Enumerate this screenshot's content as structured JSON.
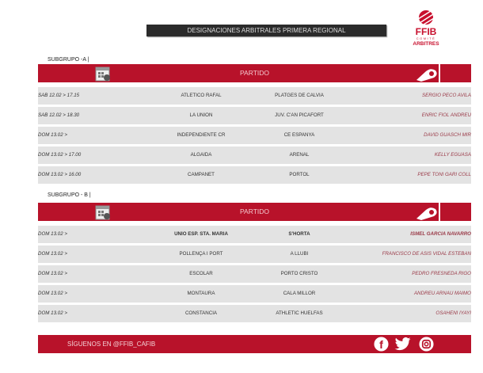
{
  "title": "DESIGNACIONES ARBITRALES PRIMERA REGIONAL",
  "logo": {
    "text": "FFIB",
    "sub1": "COMITÈ",
    "sub2": "ARBITRES"
  },
  "colors": {
    "accent": "#b8122a",
    "title_bg": "#2b2b2b",
    "row_bg": "#e3e3e3",
    "referee": "#9a3a48"
  },
  "groups": [
    {
      "label": "SUBGRUPO -A |",
      "header": "PARTIDO",
      "rows": [
        {
          "date": "SAB 12.02 > 17.15",
          "home": "ATLETICO RAFAL",
          "away": "PLATGES DE CALVIA",
          "referee": "SERGIO PECO AVILA"
        },
        {
          "date": "SAB 12.02 > 18.30",
          "home": "LA UNION",
          "away": "JUV. C'AN PICAFORT",
          "referee": "ENRIC FIOL ANDREU"
        },
        {
          "date": "DOM  13.02 >",
          "home": "INDEPENDIENTE CR",
          "away": "CE ESPANYA",
          "referee": "DAVID GUASCH MIR"
        },
        {
          "date": "DOM  13.02 > 17.00",
          "home": "ALGAIDA",
          "away": "ARENAL",
          "referee": "KELLY EGUASA"
        },
        {
          "date": "DOM  13.02 > 16.00",
          "home": "CAMPANET",
          "away": "PORTOL",
          "referee": "PEPE TONI GARI COLL"
        }
      ]
    },
    {
      "label": "SUBGRUPO - B |",
      "header": "PARTIDO",
      "rows": [
        {
          "date": "DOM  13.02 >",
          "home": "UNIO ESP. STA. MARIA",
          "away": "S'HORTA",
          "referee": "ISMEL GARCIA NAVARRO",
          "bold": true
        },
        {
          "date": "DOM  13.02 >",
          "home": "POLLENÇA I PORT",
          "away": "A LLUBI",
          "referee": "FRANCISCO DE ASIS VIDAL ESTEBAN"
        },
        {
          "date": "DOM  13.02 >",
          "home": "ESCOLAR",
          "away": "PORTO CRISTO",
          "referee": "PEDRO FRESNEDA RIGO"
        },
        {
          "date": "DOM  13.02 >",
          "home": "MONTAURA",
          "away": "CALA MILLOR",
          "referee": "ANDREU ARNAU MAIMO"
        },
        {
          "date": "DOM  13.02 >",
          "home": "CONSTANCIA",
          "away": "ATHLETIC HUELFAS",
          "referee": "OSAHENI IYAYI"
        }
      ]
    }
  ],
  "footer": {
    "text": "SÍGUENOS EN @FFIB_CAFIB",
    "icons": [
      "facebook-icon",
      "twitter-icon",
      "instagram-icon"
    ]
  }
}
